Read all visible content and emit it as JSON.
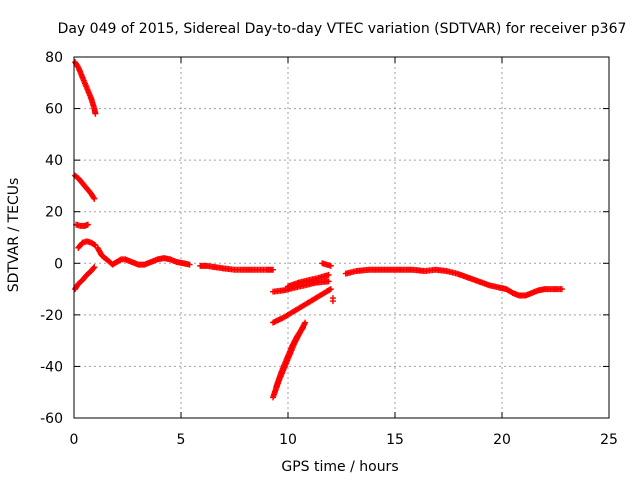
{
  "chart_data": {
    "type": "scatter",
    "title": "Day 049 of 2015, Sidereal Day-to-day VTEC variation (SDTVAR) for receiver p367",
    "xlabel": "GPS time / hours",
    "ylabel": "SDTVAR / TECUs",
    "xlim": [
      0,
      25
    ],
    "ylim": [
      -60,
      80
    ],
    "xticks": [
      0,
      5,
      10,
      15,
      20,
      25
    ],
    "yticks": [
      -60,
      -40,
      -20,
      0,
      20,
      40,
      60,
      80
    ],
    "grid": true,
    "marker": "+",
    "series": [
      {
        "color": "#ff0000",
        "segments": [
          [
            [
              0.05,
              78
            ],
            [
              0.2,
              76
            ],
            [
              0.4,
              72
            ],
            [
              0.6,
              68
            ],
            [
              0.8,
              64
            ],
            [
              0.95,
              60
            ],
            [
              1.0,
              58
            ]
          ],
          [
            [
              0.05,
              34
            ],
            [
              0.2,
              33
            ],
            [
              0.4,
              31
            ],
            [
              0.6,
              29
            ],
            [
              0.8,
              27
            ],
            [
              0.95,
              25
            ]
          ],
          [
            [
              0.1,
              15
            ],
            [
              0.3,
              14.5
            ],
            [
              0.5,
              14.5
            ],
            [
              0.65,
              15
            ]
          ],
          [
            [
              0.2,
              6
            ],
            [
              0.4,
              8
            ],
            [
              0.6,
              8.5
            ],
            [
              0.8,
              8
            ],
            [
              1.0,
              7
            ]
          ],
          [
            [
              0.05,
              -10
            ],
            [
              0.2,
              -8
            ],
            [
              0.4,
              -6.5
            ],
            [
              0.6,
              -4.5
            ],
            [
              0.8,
              -3
            ],
            [
              0.95,
              -1.5
            ]
          ],
          [
            [
              1.1,
              6
            ],
            [
              1.3,
              3
            ],
            [
              1.6,
              1
            ],
            [
              1.8,
              -0.5
            ],
            [
              2.0,
              0.5
            ],
            [
              2.2,
              1.5
            ],
            [
              2.4,
              1.5
            ],
            [
              2.7,
              0.5
            ],
            [
              3.0,
              -0.5
            ],
            [
              3.3,
              -0.5
            ],
            [
              3.6,
              0.5
            ],
            [
              3.9,
              1.5
            ],
            [
              4.2,
              2
            ],
            [
              4.5,
              1.5
            ],
            [
              4.8,
              0.5
            ],
            [
              5.1,
              0
            ],
            [
              5.4,
              -0.5
            ]
          ],
          [
            [
              5.9,
              -1
            ],
            [
              6.2,
              -1
            ],
            [
              6.6,
              -1.5
            ],
            [
              7.0,
              -2
            ],
            [
              7.5,
              -2.5
            ],
            [
              8.0,
              -2.5
            ],
            [
              8.5,
              -2.5
            ],
            [
              9.0,
              -2.5
            ],
            [
              9.3,
              -2.5
            ]
          ],
          [
            [
              9.3,
              -11
            ],
            [
              9.8,
              -10.5
            ],
            [
              10.3,
              -9.5
            ],
            [
              10.8,
              -8.5
            ],
            [
              11.3,
              -7.5
            ],
            [
              11.9,
              -7
            ]
          ],
          [
            [
              10.0,
              -9
            ],
            [
              10.5,
              -7.5
            ],
            [
              11.0,
              -6.5
            ],
            [
              11.5,
              -5.5
            ],
            [
              11.9,
              -4.5
            ]
          ],
          [
            [
              9.3,
              -23
            ],
            [
              9.8,
              -21
            ],
            [
              10.3,
              -18.5
            ],
            [
              10.8,
              -16
            ],
            [
              11.3,
              -13.5
            ],
            [
              11.8,
              -11
            ],
            [
              12.0,
              -10
            ]
          ],
          [
            [
              9.3,
              -52
            ],
            [
              9.55,
              -46
            ],
            [
              9.8,
              -41
            ],
            [
              10.05,
              -36
            ],
            [
              10.3,
              -31
            ],
            [
              10.55,
              -27
            ],
            [
              10.8,
              -23
            ]
          ],
          [
            [
              9.45,
              -48
            ],
            [
              9.7,
              -42
            ],
            [
              9.95,
              -37
            ],
            [
              10.2,
              -32
            ],
            [
              10.45,
              -28
            ],
            [
              10.7,
              -25
            ]
          ],
          [
            [
              11.6,
              0
            ],
            [
              11.8,
              -0.5
            ],
            [
              12.0,
              -1
            ]
          ],
          [
            [
              12.1,
              -13.5
            ]
          ],
          [
            [
              12.7,
              -4
            ],
            [
              13.2,
              -3
            ],
            [
              13.8,
              -2.5
            ],
            [
              14.5,
              -2.5
            ],
            [
              15.2,
              -2.5
            ],
            [
              15.8,
              -2.5
            ],
            [
              16.4,
              -3
            ],
            [
              16.9,
              -2.5
            ],
            [
              17.4,
              -3
            ],
            [
              17.9,
              -4
            ],
            [
              18.4,
              -5.5
            ],
            [
              18.9,
              -7
            ],
            [
              19.4,
              -8.5
            ],
            [
              19.9,
              -9.5
            ],
            [
              20.2,
              -10
            ],
            [
              20.5,
              -11.5
            ],
            [
              20.8,
              -12.5
            ],
            [
              21.1,
              -12.5
            ],
            [
              21.4,
              -11.5
            ],
            [
              21.7,
              -10.5
            ],
            [
              22.0,
              -10
            ],
            [
              22.4,
              -10
            ],
            [
              22.8,
              -10
            ]
          ]
        ]
      }
    ]
  }
}
